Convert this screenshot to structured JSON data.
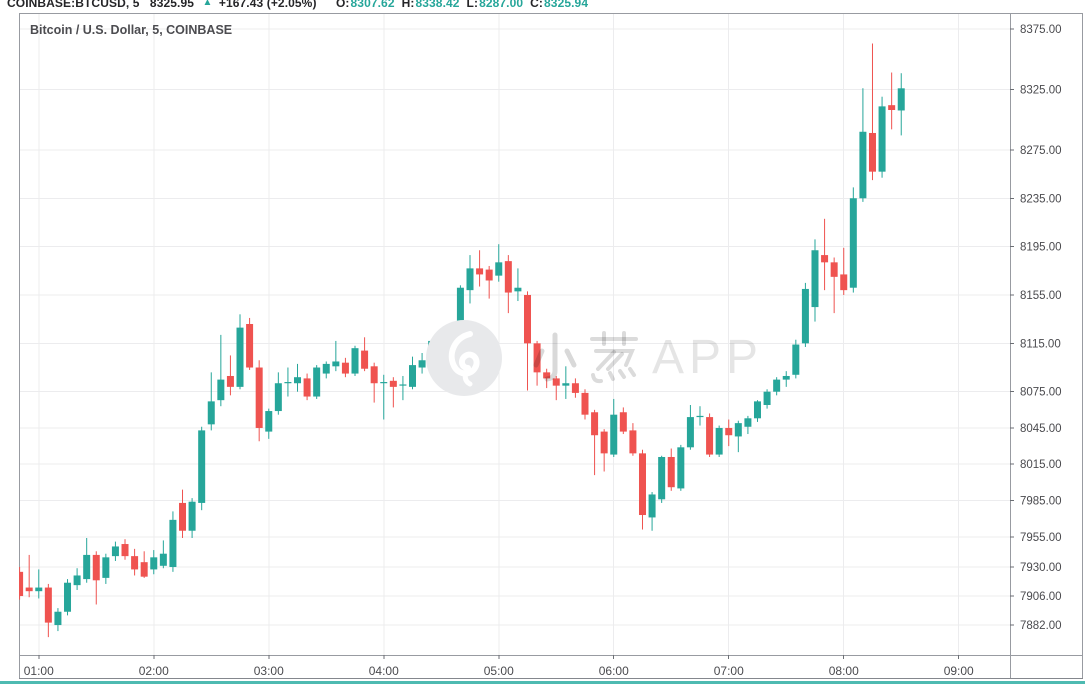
{
  "header": {
    "symbol": "COINBASE:BTCUSD, 5",
    "last_price": "8325.95",
    "up_arrow": "▲",
    "change": "+167.43 (+2.05%)",
    "ohlc": [
      {
        "label": "O:",
        "value": "8307.62"
      },
      {
        "label": "H:",
        "value": "8338.42"
      },
      {
        "label": "L:",
        "value": "8287.00"
      },
      {
        "label": "C:",
        "value": "8325.94"
      }
    ]
  },
  "chart": {
    "title": "Bitcoin / U.S. Dollar, 5, COINBASE",
    "watermark_text": "小葱 APP",
    "watermark_en": "APP"
  },
  "colors": {
    "up": "#26a69a",
    "down": "#ef5350",
    "grid": "#ececee",
    "frame": "#989ba1",
    "axis_text": "#4a4a4e",
    "accent_teal": "#3bb3a9"
  },
  "chart_data": {
    "type": "candlestick",
    "title": "Bitcoin / U.S. Dollar, 5, COINBASE",
    "symbol": "COINBASE:BTCUSD",
    "interval_minutes": 5,
    "start_time": "00:50",
    "x_axis_labels": [
      "01:00",
      "02:00",
      "03:00",
      "04:00",
      "05:00",
      "06:00",
      "07:00",
      "08:00",
      "09:00"
    ],
    "y_axis_labels": [
      8375,
      8325,
      8275,
      8235,
      8195,
      8155,
      8115,
      8075,
      8045,
      8015,
      7985,
      7955,
      7930,
      7906,
      7882
    ],
    "y_range_visible": [
      7858,
      8388
    ],
    "grid": true,
    "legend_position": "none",
    "candles_ohlc": [
      [
        7926,
        7930,
        7903,
        7906
      ],
      [
        7913,
        7940,
        7905,
        7910
      ],
      [
        7910,
        7928,
        7904,
        7913
      ],
      [
        7913,
        7916,
        7872,
        7884
      ],
      [
        7882,
        7896,
        7877,
        7893
      ],
      [
        7893,
        7920,
        7890,
        7917
      ],
      [
        7915,
        7929,
        7911,
        7923
      ],
      [
        7920,
        7954,
        7917,
        7940
      ],
      [
        7940,
        7943,
        7899,
        7919
      ],
      [
        7921,
        7941,
        7916,
        7938
      ],
      [
        7939,
        7951,
        7935,
        7947
      ],
      [
        7949,
        7953,
        7936,
        7939
      ],
      [
        7939,
        7945,
        7923,
        7928
      ],
      [
        7934,
        7943,
        7921,
        7922
      ],
      [
        7928,
        7944,
        7924,
        7938
      ],
      [
        7931,
        7952,
        7929,
        7941
      ],
      [
        7930,
        7976,
        7926,
        7969
      ],
      [
        7983,
        7994,
        7954,
        7960
      ],
      [
        7960,
        7987,
        7954,
        7984
      ],
      [
        7983,
        8046,
        7977,
        8043
      ],
      [
        8048,
        8091,
        8043,
        8067
      ],
      [
        8068,
        8122,
        8063,
        8085
      ],
      [
        8088,
        8105,
        8072,
        8079
      ],
      [
        8079,
        8139,
        8077,
        8128
      ],
      [
        8131,
        8136,
        8093,
        8095
      ],
      [
        8095,
        8101,
        8034,
        8045
      ],
      [
        8042,
        8061,
        8036,
        8059
      ],
      [
        8059,
        8091,
        8056,
        8082
      ],
      [
        8083,
        8095,
        8071,
        8083
      ],
      [
        8082,
        8098,
        8075,
        8087
      ],
      [
        8086,
        8090,
        8068,
        8071
      ],
      [
        8071,
        8097,
        8069,
        8095
      ],
      [
        8090,
        8100,
        8086,
        8098
      ],
      [
        8096,
        8117,
        8092,
        8100
      ],
      [
        8099,
        8103,
        8087,
        8090
      ],
      [
        8090,
        8113,
        8088,
        8111
      ],
      [
        8109,
        8120,
        8092,
        8094
      ],
      [
        8096,
        8099,
        8066,
        8082
      ],
      [
        8083,
        8089,
        8052,
        8083
      ],
      [
        8084,
        8087,
        8062,
        8079
      ],
      [
        8081,
        8088,
        8068,
        8081
      ],
      [
        8079,
        8104,
        8077,
        8097
      ],
      [
        8095,
        8107,
        8090,
        8101
      ],
      [
        8095,
        8118,
        8093,
        8117
      ],
      [
        8117,
        8119,
        8083,
        8109
      ],
      [
        8112,
        8114,
        8094,
        8103
      ],
      [
        8104,
        8163,
        8101,
        8161
      ],
      [
        8159,
        8188,
        8148,
        8177
      ],
      [
        8177,
        8192,
        8162,
        8172
      ],
      [
        8176,
        8179,
        8152,
        8167
      ],
      [
        8171,
        8197,
        8166,
        8182
      ],
      [
        8183,
        8188,
        8140,
        8157
      ],
      [
        8158,
        8177,
        8150,
        8161
      ],
      [
        8155,
        8158,
        8076,
        8115
      ],
      [
        8115,
        8117,
        8080,
        8091
      ],
      [
        8091,
        8094,
        8078,
        8086
      ],
      [
        8086,
        8088,
        8068,
        8080
      ],
      [
        8080,
        8096,
        8069,
        8082
      ],
      [
        8082,
        8086,
        8070,
        8074
      ],
      [
        8074,
        8077,
        8052,
        8056
      ],
      [
        8058,
        8060,
        8006,
        8039
      ],
      [
        8042,
        8044,
        8009,
        8024
      ],
      [
        8023,
        8069,
        8021,
        8056
      ],
      [
        8058,
        8062,
        8040,
        8042
      ],
      [
        8043,
        8049,
        8022,
        8024
      ],
      [
        8024,
        8027,
        7961,
        7973
      ],
      [
        7971,
        7992,
        7960,
        7990
      ],
      [
        7986,
        8022,
        7983,
        8021
      ],
      [
        8021,
        8028,
        7993,
        7996
      ],
      [
        7995,
        8031,
        7993,
        8029
      ],
      [
        8029,
        8064,
        8027,
        8054
      ],
      [
        8054,
        8063,
        8047,
        8055
      ],
      [
        8054,
        8057,
        8021,
        8023
      ],
      [
        8023,
        8047,
        8021,
        8045
      ],
      [
        8045,
        8052,
        8030,
        8039
      ],
      [
        8038,
        8051,
        8025,
        8049
      ],
      [
        8046,
        8055,
        8040,
        8053
      ],
      [
        8053,
        8068,
        8050,
        8067
      ],
      [
        8064,
        8077,
        8061,
        8075
      ],
      [
        8075,
        8087,
        8072,
        8085
      ],
      [
        8085,
        8092,
        8079,
        8088
      ],
      [
        8089,
        8118,
        8086,
        8114
      ],
      [
        8115,
        8165,
        8112,
        8160
      ],
      [
        8145,
        8201,
        8133,
        8192
      ],
      [
        8188,
        8218,
        8159,
        8182
      ],
      [
        8182,
        8186,
        8140,
        8170
      ],
      [
        8172,
        8194,
        8155,
        8159
      ],
      [
        8161,
        8244,
        8157,
        8235
      ],
      [
        8235,
        8326,
        8232,
        8290
      ],
      [
        8289,
        8363,
        8250,
        8257
      ],
      [
        8257,
        8319,
        8252,
        8311
      ],
      [
        8312,
        8339,
        8292,
        8308
      ],
      [
        8307.62,
        8338.42,
        8287.0,
        8325.94
      ]
    ]
  }
}
